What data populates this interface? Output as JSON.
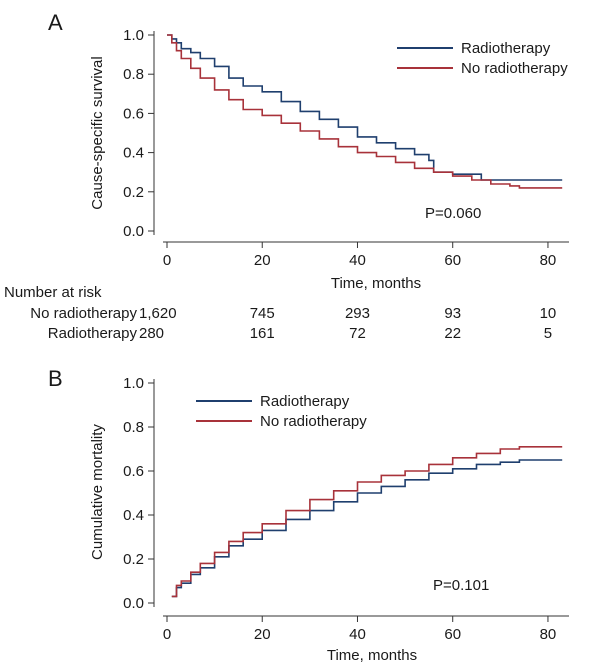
{
  "chart_data": [
    {
      "panel_label": "A",
      "type": "line",
      "xlabel": "Time, months",
      "ylabel": "Cause-specific survival",
      "xlim": [
        0,
        84
      ],
      "ylim": [
        0,
        1.0
      ],
      "xticks": [
        "0",
        "20",
        "40",
        "60",
        "80"
      ],
      "yticks": [
        "0.0",
        "0.2",
        "0.4",
        "0.6",
        "0.8",
        "1.0"
      ],
      "legend_position": "top-right",
      "annotation": "P=0.060",
      "series": [
        {
          "name": "Radiotherapy",
          "color": "#1f3f6e",
          "x": [
            0,
            1,
            2,
            3,
            5,
            7,
            10,
            13,
            16,
            20,
            24,
            28,
            32,
            36,
            40,
            44,
            48,
            52,
            55,
            56,
            60,
            64,
            66,
            70,
            75,
            80,
            83
          ],
          "y": [
            1.0,
            0.98,
            0.96,
            0.93,
            0.91,
            0.88,
            0.84,
            0.78,
            0.74,
            0.71,
            0.66,
            0.61,
            0.57,
            0.53,
            0.48,
            0.45,
            0.42,
            0.39,
            0.36,
            0.3,
            0.29,
            0.29,
            0.26,
            0.26,
            0.26,
            0.26,
            0.26
          ]
        },
        {
          "name": "No radiotherapy",
          "color": "#a8323a",
          "x": [
            0,
            1,
            2,
            3,
            5,
            7,
            10,
            13,
            16,
            20,
            24,
            28,
            32,
            36,
            40,
            44,
            48,
            52,
            56,
            60,
            64,
            68,
            72,
            74,
            78,
            83
          ],
          "y": [
            1.0,
            0.96,
            0.92,
            0.88,
            0.83,
            0.78,
            0.72,
            0.67,
            0.62,
            0.59,
            0.55,
            0.51,
            0.47,
            0.43,
            0.4,
            0.38,
            0.35,
            0.32,
            0.3,
            0.28,
            0.26,
            0.24,
            0.23,
            0.22,
            0.22,
            0.22
          ]
        }
      ],
      "risk_table": {
        "title": "Number at risk",
        "times": [
          0,
          20,
          40,
          60,
          80
        ],
        "rows": [
          {
            "label": "No radiotherapy",
            "values": [
              "1,620",
              "745",
              "293",
              "93",
              "10"
            ]
          },
          {
            "label": "Radiotherapy",
            "values": [
              "280",
              "161",
              "72",
              "22",
              "5"
            ]
          }
        ]
      }
    },
    {
      "panel_label": "B",
      "type": "line",
      "xlabel": "Time, months",
      "ylabel": "Cumulative mortality",
      "xlim": [
        0,
        84
      ],
      "ylim": [
        0,
        1.0
      ],
      "xticks": [
        "0",
        "20",
        "40",
        "60",
        "80"
      ],
      "yticks": [
        "0.0",
        "0.2",
        "0.4",
        "0.6",
        "0.8",
        "1.0"
      ],
      "legend_position": "top-left",
      "annotation": "P=0.101",
      "series": [
        {
          "name": "Radiotherapy",
          "color": "#1f3f6e",
          "x": [
            1,
            2,
            3,
            5,
            7,
            10,
            13,
            16,
            20,
            25,
            30,
            35,
            40,
            45,
            50,
            55,
            60,
            65,
            70,
            74,
            78,
            83
          ],
          "y": [
            0.03,
            0.07,
            0.09,
            0.13,
            0.16,
            0.21,
            0.26,
            0.29,
            0.33,
            0.38,
            0.42,
            0.46,
            0.5,
            0.53,
            0.56,
            0.59,
            0.61,
            0.63,
            0.64,
            0.65,
            0.65,
            0.65
          ]
        },
        {
          "name": "No radiotherapy",
          "color": "#a8323a",
          "x": [
            1,
            2,
            3,
            5,
            7,
            10,
            13,
            16,
            20,
            25,
            30,
            35,
            40,
            45,
            50,
            55,
            60,
            65,
            70,
            74,
            78,
            83
          ],
          "y": [
            0.03,
            0.08,
            0.1,
            0.14,
            0.18,
            0.23,
            0.28,
            0.32,
            0.36,
            0.42,
            0.47,
            0.51,
            0.55,
            0.58,
            0.6,
            0.63,
            0.66,
            0.68,
            0.7,
            0.71,
            0.71,
            0.71
          ]
        }
      ]
    }
  ]
}
